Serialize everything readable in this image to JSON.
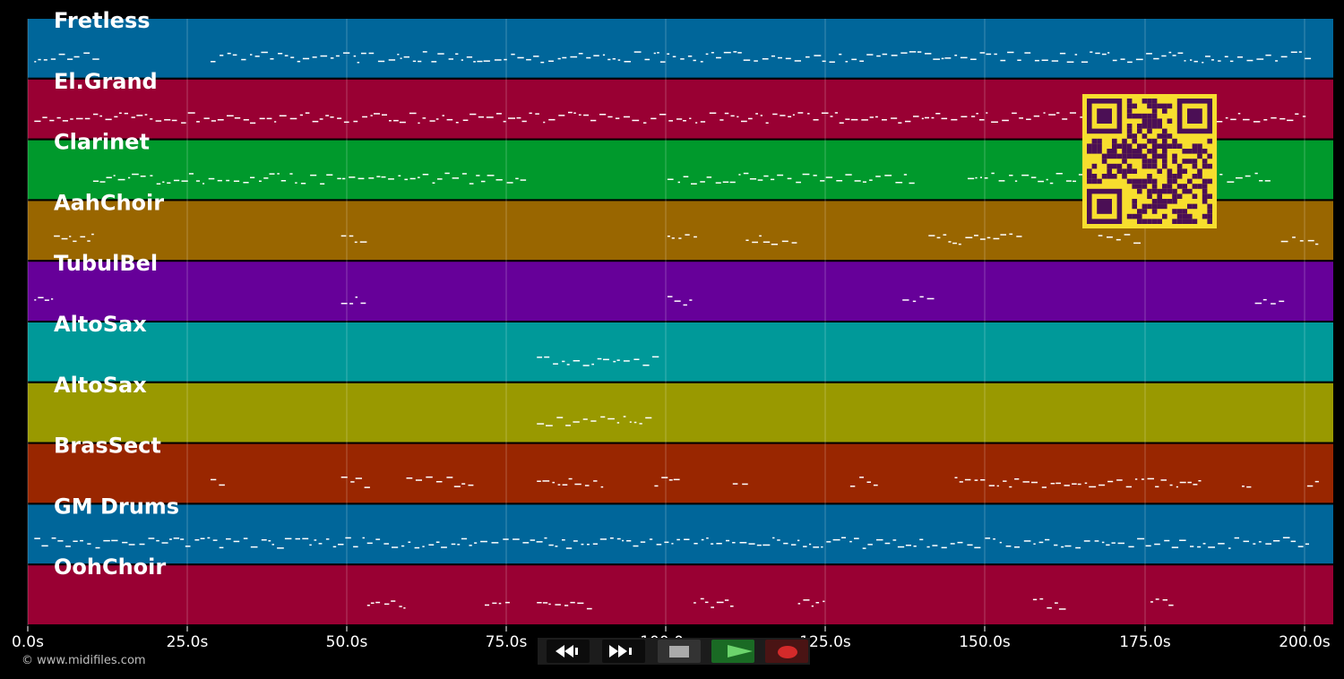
{
  "tracks": [
    {
      "name": "Fretless",
      "color": "#00669a"
    },
    {
      "name": "El.Grand",
      "color": "#990033"
    },
    {
      "name": "Clarinet",
      "color": "#00992c"
    },
    {
      "name": "AahChoir",
      "color": "#996600"
    },
    {
      "name": "TubulBel",
      "color": "#660099"
    },
    {
      "name": "AltoSax",
      "color": "#009999"
    },
    {
      "name": "AltoSax",
      "color": "#999900"
    },
    {
      "name": "BrasSect",
      "color": "#992600"
    },
    {
      "name": "GM Drums",
      "color": "#00669a"
    },
    {
      "name": "OohChoir",
      "color": "#990033"
    }
  ],
  "time_axis": {
    "ticks": [
      "0.0s",
      "25.0s",
      "50.0s",
      "75.0s",
      "100.0s",
      "125.0s",
      "150.0s",
      "175.0s",
      "200.0s"
    ]
  },
  "copyright": "© www.midifiles.com",
  "transport": {
    "rewind_icon": "rewind-icon",
    "forward_icon": "fast-forward-icon",
    "stop_icon": "stop-icon",
    "play_icon": "play-icon",
    "record_icon": "record-icon"
  },
  "qr": {
    "fg": "#4b0f55",
    "bg": "#f7de2e"
  }
}
